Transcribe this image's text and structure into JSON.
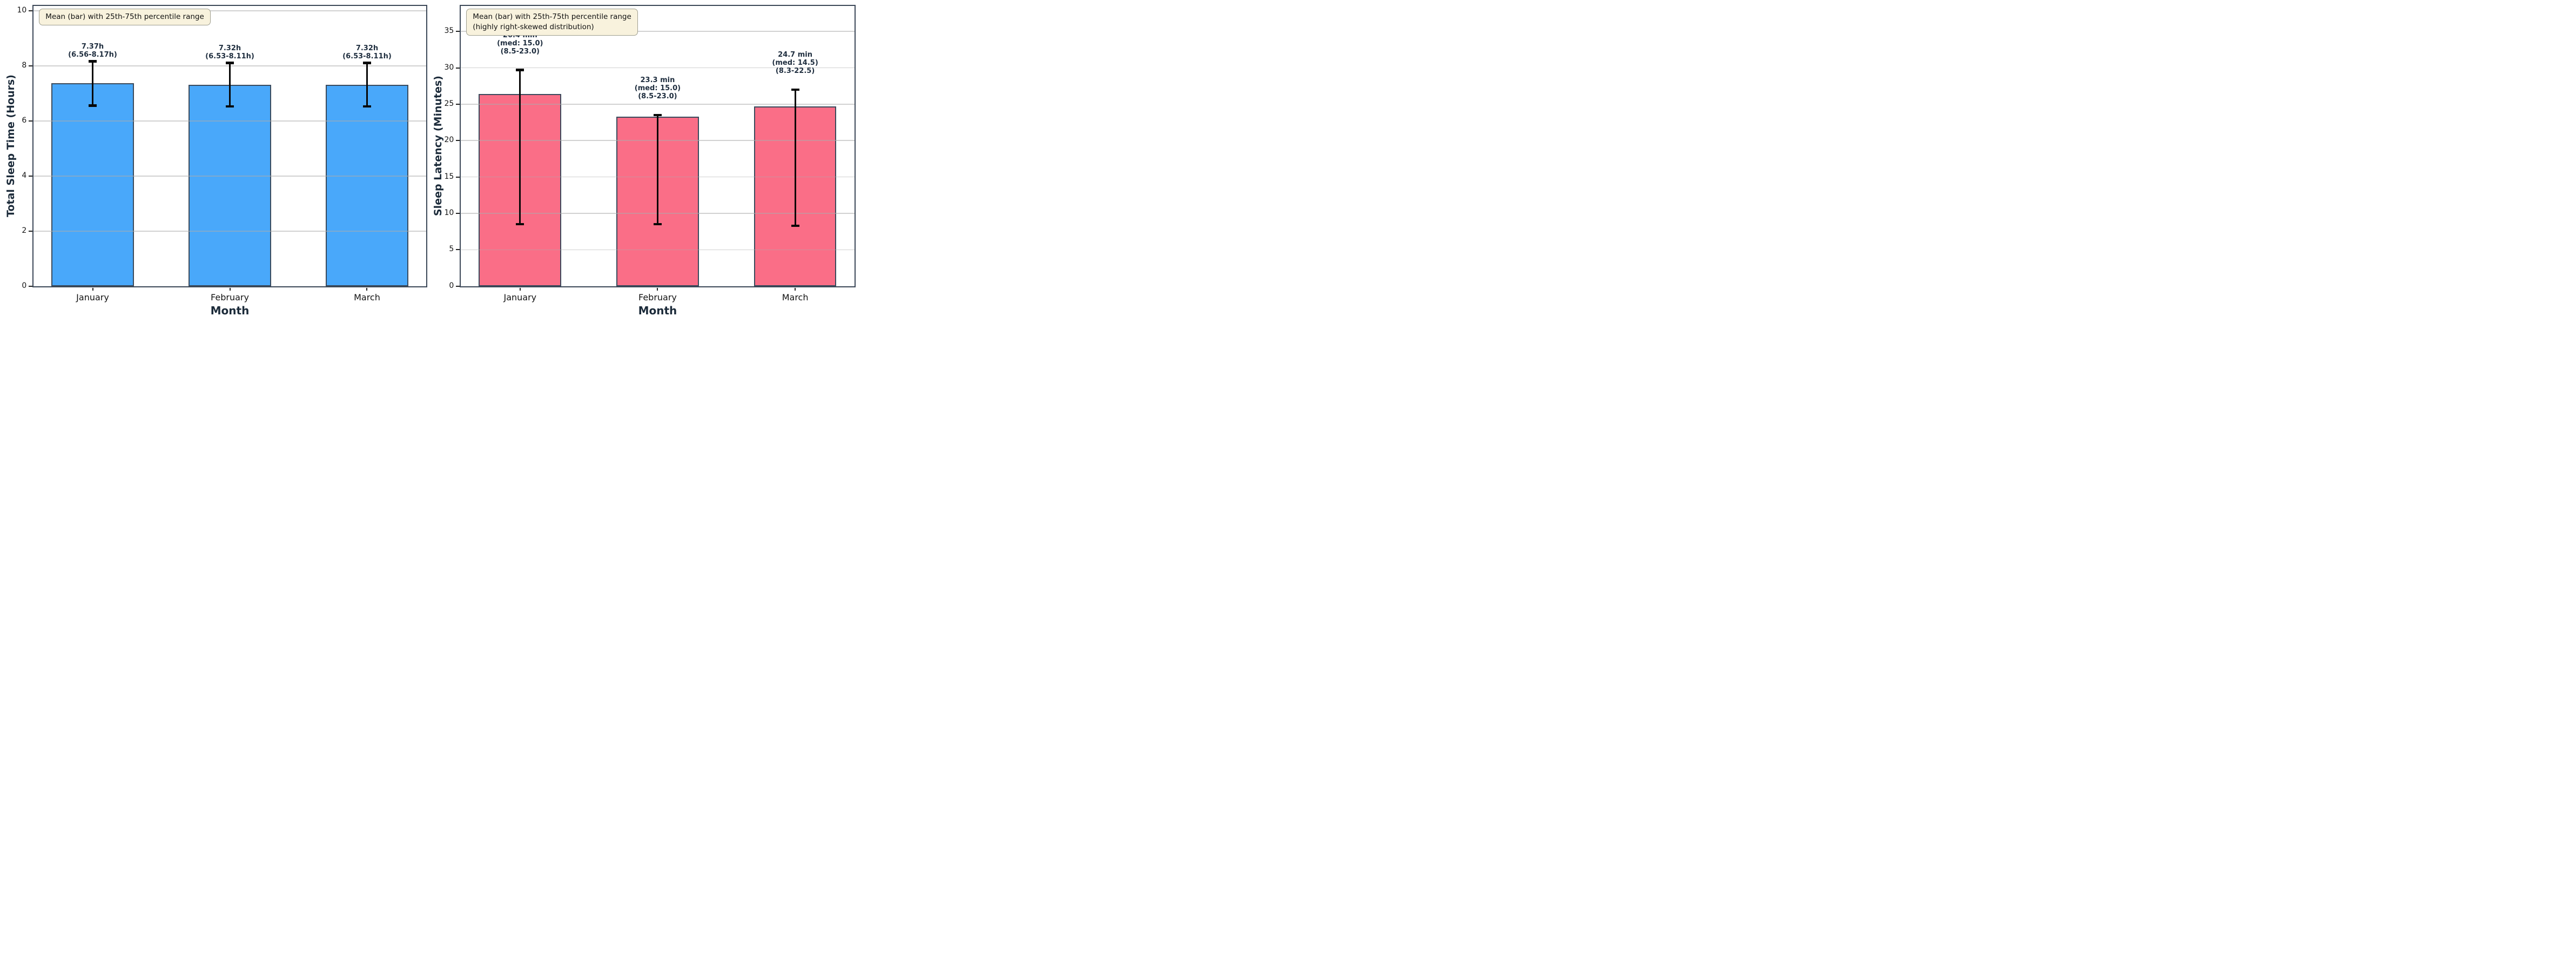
{
  "figure": {
    "background": "#ffffff"
  },
  "chart_data": [
    {
      "type": "bar",
      "legend_note_lines": [
        "Mean (bar) with 25th-75th percentile range"
      ],
      "xlabel": "Month",
      "ylabel": "Total Sleep Time (Hours)",
      "categories": [
        "January",
        "February",
        "March"
      ],
      "values": [
        7.37,
        7.32,
        7.32
      ],
      "p25": [
        6.56,
        6.53,
        6.53
      ],
      "p75": [
        8.17,
        8.11,
        8.11
      ],
      "whisker_low": [
        6.56,
        6.53,
        6.53
      ],
      "whisker_high": [
        8.17,
        8.11,
        8.11
      ],
      "bar_labels": [
        [
          "7.37h",
          "(6.56-8.17h)"
        ],
        [
          "7.32h",
          "(6.53-8.11h)"
        ],
        [
          "7.32h",
          "(6.53-8.11h)"
        ]
      ],
      "yticks": [
        0,
        2,
        4,
        6,
        8,
        10
      ],
      "ylim": [
        0,
        10.18
      ],
      "grid": true,
      "legend_position": "top-left",
      "bar_color": "#49A8FA",
      "bar_edge_color": "#3A4A5C"
    },
    {
      "type": "bar",
      "legend_note_lines": [
        "Mean (bar) with 25th-75th percentile range",
        "(highly right-skewed distribution)"
      ],
      "xlabel": "Month",
      "ylabel": "Sleep Latency (Minutes)",
      "categories": [
        "January",
        "February",
        "March"
      ],
      "values": [
        26.4,
        23.3,
        24.7
      ],
      "medians": [
        15.0,
        15.0,
        14.5
      ],
      "p25": [
        8.5,
        8.5,
        8.3
      ],
      "p75": [
        23.0,
        23.0,
        22.5
      ],
      "whisker_low": [
        8.5,
        8.5,
        8.3
      ],
      "whisker_high": [
        29.7,
        23.5,
        27.0
      ],
      "bar_labels": [
        [
          "26.4 min",
          "(med: 15.0)",
          "(8.5-23.0)"
        ],
        [
          "23.3 min",
          "(med: 15.0)",
          "(8.5-23.0)"
        ],
        [
          "24.7 min",
          "(med: 14.5)",
          "(8.3-22.5)"
        ]
      ],
      "yticks": [
        0,
        5,
        10,
        15,
        20,
        25,
        30,
        35
      ],
      "ylim": [
        0,
        38.5
      ],
      "grid": true,
      "legend_position": "top-left",
      "bar_color": "#FA6E87",
      "bar_edge_color": "#3A4A5C"
    }
  ]
}
